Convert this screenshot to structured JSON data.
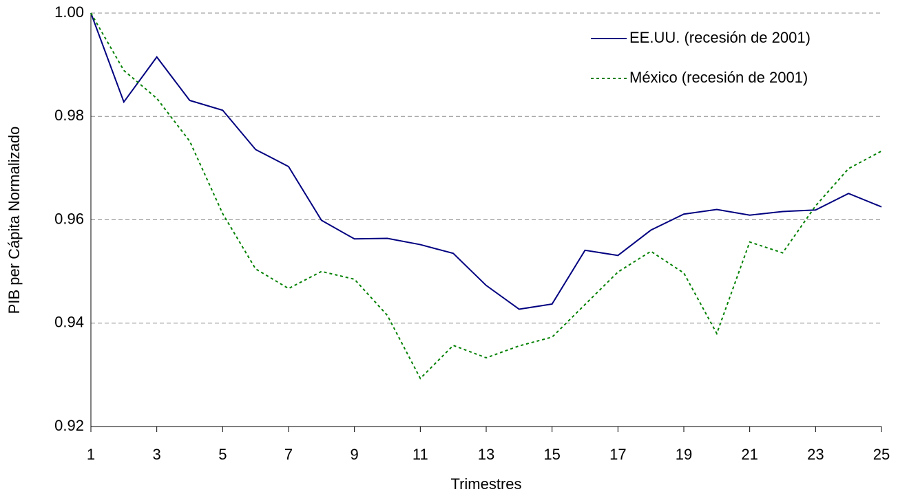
{
  "chart_data": {
    "type": "line",
    "x_label": "Trimestres",
    "y_label": "PIB per Cápita Normalizado",
    "x": [
      1,
      2,
      3,
      4,
      5,
      6,
      7,
      8,
      9,
      10,
      11,
      12,
      13,
      14,
      15,
      16,
      17,
      18,
      19,
      20,
      21,
      22,
      23,
      24,
      25
    ],
    "series": [
      {
        "name": "EE.UU. (recesión de 2001)",
        "color": "#000080",
        "style": "solid",
        "values": [
          1.0,
          0.9828,
          0.9915,
          0.9831,
          0.9812,
          0.9736,
          0.9703,
          0.9599,
          0.9563,
          0.9564,
          0.9552,
          0.9535,
          0.9473,
          0.9427,
          0.9437,
          0.9541,
          0.9531,
          0.958,
          0.9611,
          0.962,
          0.9609,
          0.9616,
          0.9619,
          0.9651,
          0.9625
        ]
      },
      {
        "name": "México (recesión de 2001)",
        "color": "#008000",
        "style": "dotted",
        "values": [
          1.0,
          0.9889,
          0.9835,
          0.9752,
          0.9612,
          0.9505,
          0.9467,
          0.95,
          0.9485,
          0.9415,
          0.9293,
          0.9357,
          0.9333,
          0.9356,
          0.9373,
          0.9436,
          0.9499,
          0.9539,
          0.9497,
          0.938,
          0.9557,
          0.9536,
          0.9627,
          0.9699,
          0.9733
        ]
      }
    ],
    "xlim": [
      1,
      25
    ],
    "xticks": [
      1,
      3,
      5,
      7,
      9,
      11,
      13,
      15,
      17,
      19,
      21,
      23,
      25
    ],
    "ylim": [
      0.92,
      1.0
    ],
    "yticks": [
      {
        "value": 1,
        "label": "1.00"
      },
      0.98,
      0.96,
      0.94,
      0.92
    ],
    "grid": true,
    "legend": "top-right"
  }
}
